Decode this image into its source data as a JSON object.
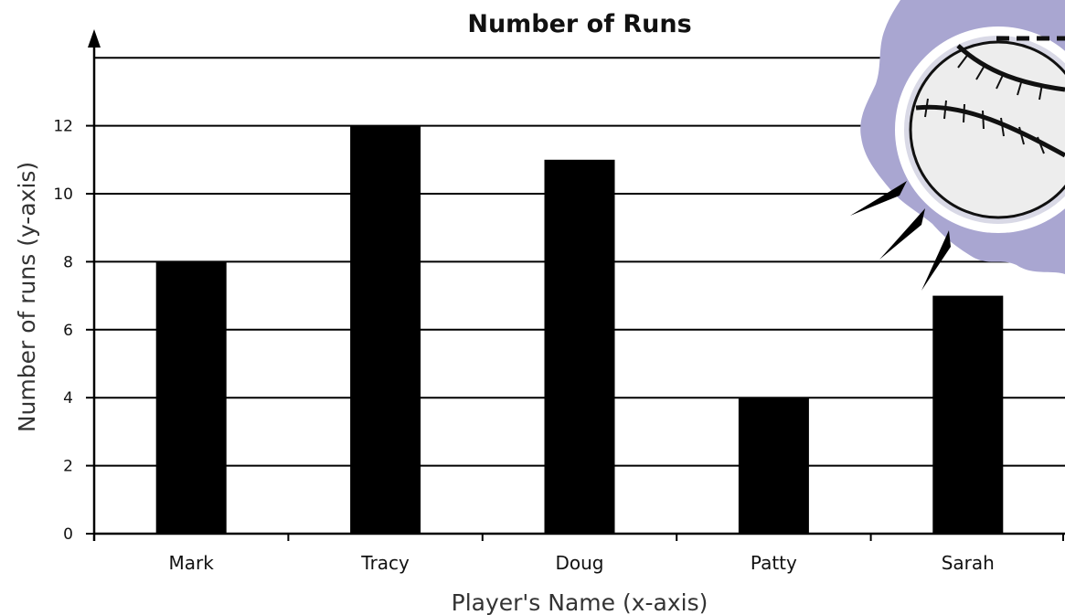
{
  "chart_data": {
    "type": "bar",
    "title": "Number of Runs",
    "xlabel": "Player's Name (x-axis)",
    "ylabel": "Number of runs (y-axis)",
    "categories": [
      "Mark",
      "Tracy",
      "Doug",
      "Patty",
      "Sarah"
    ],
    "values": [
      8,
      12,
      11,
      4,
      7
    ],
    "ylim": [
      0,
      14
    ],
    "yticks": [
      0,
      2,
      4,
      6,
      8,
      10,
      12
    ],
    "grid": true,
    "colors": {
      "bar": "#000000",
      "grid": "#000000",
      "baseball_blob": "#a9a6d1"
    },
    "decoration": "baseball-icon"
  }
}
